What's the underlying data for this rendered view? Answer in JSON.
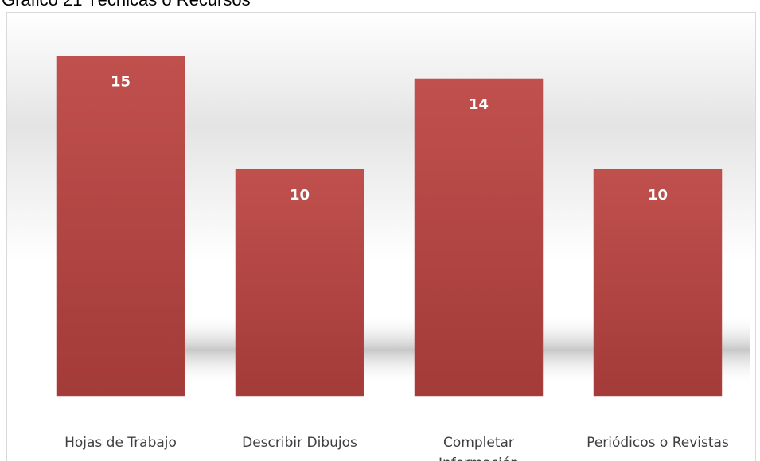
{
  "chart_data": {
    "type": "bar",
    "title": "Gráfico 21 Técnicas o Recursos",
    "categories": [
      "Hojas de Trabajo",
      "Describir Dibujos",
      "Completar Información",
      "Periódicos o Revistas"
    ],
    "values": [
      15,
      10,
      14,
      10
    ],
    "color": "#b84a48"
  }
}
